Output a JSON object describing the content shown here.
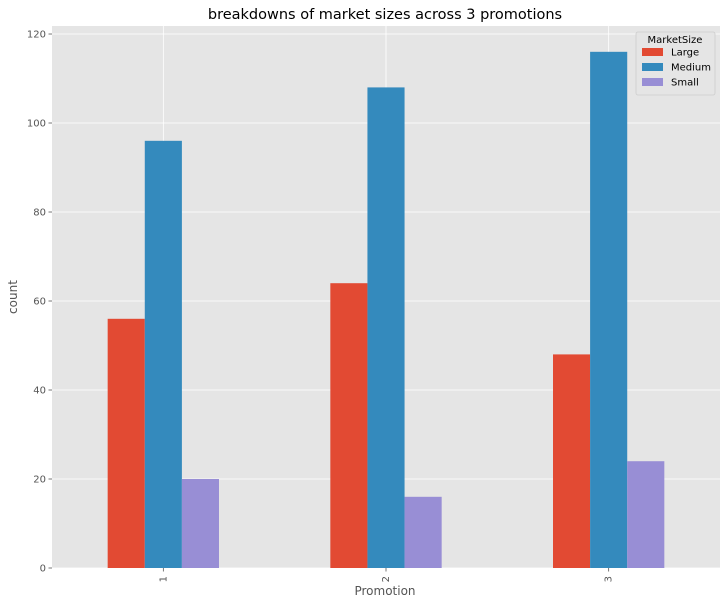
{
  "chart_data": {
    "type": "bar",
    "title": "breakdowns of market sizes across 3 promotions",
    "xlabel": "Promotion",
    "ylabel": "count",
    "categories": [
      "1",
      "2",
      "3"
    ],
    "series": [
      {
        "name": "Large",
        "values": [
          56,
          64,
          48
        ]
      },
      {
        "name": "Medium",
        "values": [
          96,
          108,
          116
        ]
      },
      {
        "name": "Small",
        "values": [
          20,
          16,
          24
        ]
      }
    ],
    "ylim": [
      0,
      121.8
    ],
    "yticks": [
      0,
      20,
      40,
      60,
      80,
      100,
      120
    ],
    "grid": true,
    "legend_title": "MarketSize",
    "legend_position": "top-right",
    "colors": {
      "Large": "#E24A33",
      "Medium": "#348ABD",
      "Small": "#988ED5",
      "background": "#E5E5E5",
      "grid": "#FFFFFF"
    }
  }
}
